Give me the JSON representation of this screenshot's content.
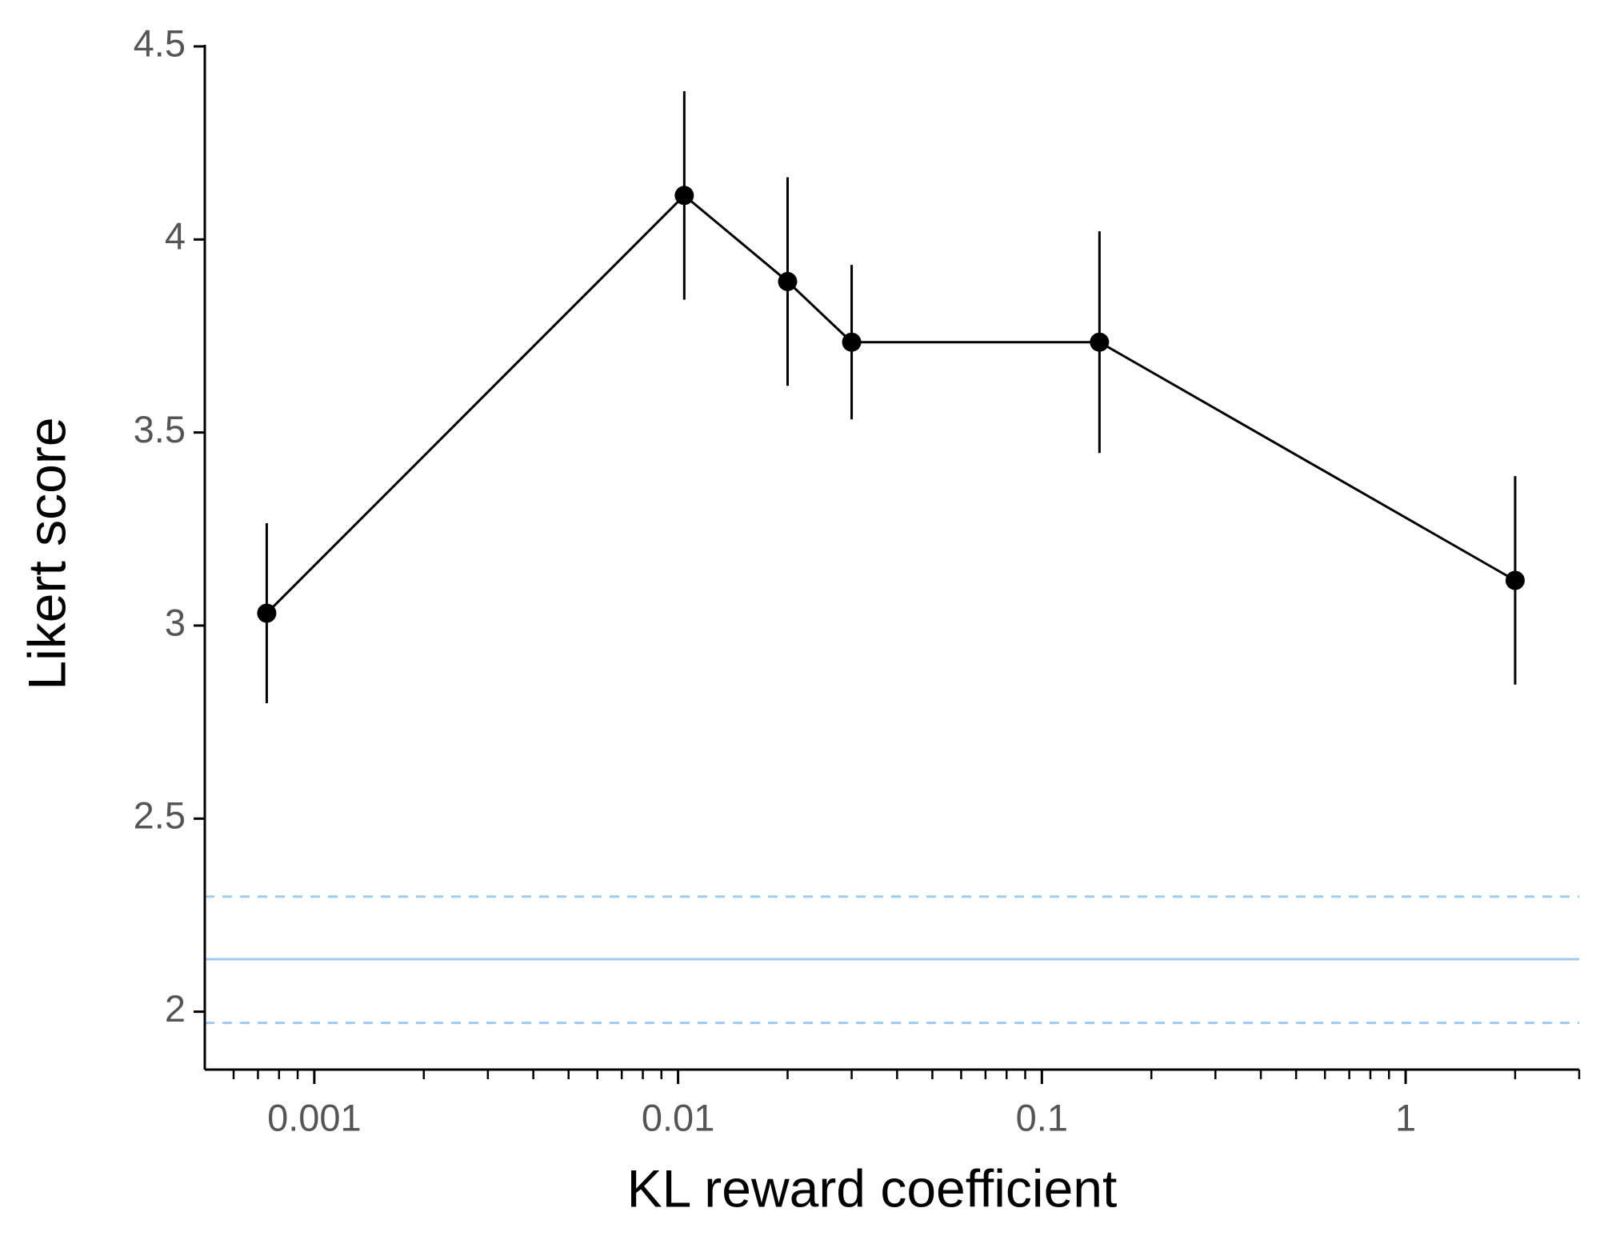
{
  "chart_data": {
    "type": "line",
    "xlabel": "KL reward coefficient",
    "ylabel": "Likert score",
    "xscale": "log",
    "xlim": [
      0.0005,
      3
    ],
    "ylim": [
      1.85,
      4.5
    ],
    "xticks": [
      0.001,
      0.01,
      0.1,
      1
    ],
    "xminorticks": [
      0.0006,
      0.0007,
      0.0008,
      0.0009,
      0.002,
      0.003,
      0.004,
      0.005,
      0.006,
      0.007,
      0.008,
      0.009,
      0.02,
      0.03,
      0.04,
      0.05,
      0.06,
      0.07,
      0.08,
      0.09,
      0.2,
      0.3,
      0.4,
      0.5,
      0.6,
      0.7,
      0.8,
      0.9,
      2,
      3
    ],
    "yticks": [
      2,
      2.5,
      3,
      3.5,
      4,
      4.5
    ],
    "grid": false,
    "series": [
      {
        "color": "#000000",
        "x": [
          0.00074,
          0.0104,
          0.02,
          0.03,
          0.144,
          2
        ],
        "values": [
          3.032,
          4.114,
          3.891,
          3.734,
          3.734,
          3.117
        ],
        "errors": [
          0.233,
          0.27,
          0.27,
          0.2,
          0.287,
          0.27
        ]
      }
    ],
    "reference": {
      "color": "#a0cbf0",
      "value": 2.136,
      "lower": 1.971,
      "upper": 2.298
    }
  }
}
